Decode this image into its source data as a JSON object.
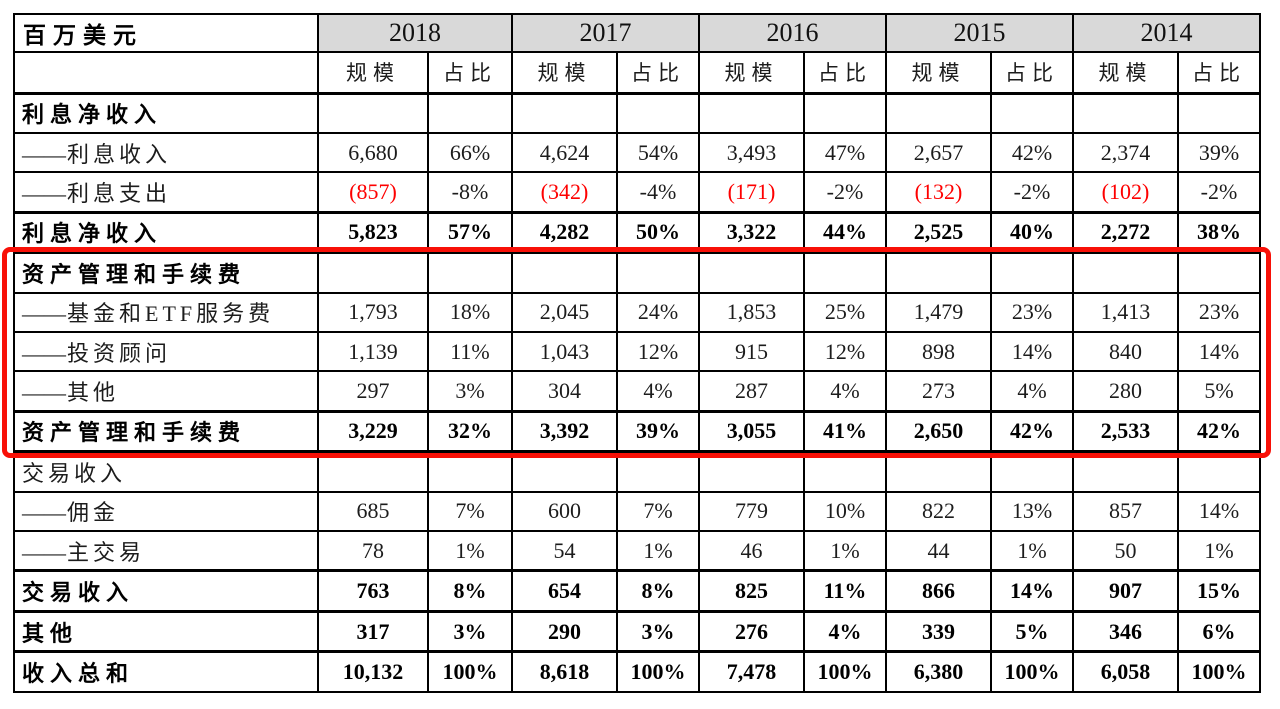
{
  "unit_label": "百万美元",
  "columns": {
    "years": [
      "2018",
      "2017",
      "2016",
      "2015",
      "2014"
    ],
    "sub_headers": [
      "规模",
      "占比"
    ]
  },
  "rows": [
    {
      "prefix": "",
      "label": "利息净收入",
      "type": "section",
      "bold_label": true,
      "values": [
        "",
        "",
        "",
        "",
        "",
        "",
        "",
        "",
        "",
        ""
      ]
    },
    {
      "prefix": "——",
      "label": "利息收入",
      "type": "item",
      "bold_label": false,
      "values": [
        "6,680",
        "66%",
        "4,624",
        "54%",
        "3,493",
        "47%",
        "2,657",
        "42%",
        "2,374",
        "39%"
      ]
    },
    {
      "prefix": "——",
      "label": "利息支出",
      "type": "item",
      "bold_label": false,
      "values": [
        "(857)",
        "-8%",
        "(342)",
        "-4%",
        "(171)",
        "-2%",
        "(132)",
        "-2%",
        "(102)",
        "-2%"
      ]
    },
    {
      "prefix": "",
      "label": "利息净收入",
      "type": "total",
      "bold_label": true,
      "values": [
        "5,823",
        "57%",
        "4,282",
        "50%",
        "3,322",
        "44%",
        "2,525",
        "40%",
        "2,272",
        "38%"
      ]
    },
    {
      "prefix": "",
      "label": "资产管理和手续费",
      "type": "section",
      "bold_label": true,
      "values": [
        "",
        "",
        "",
        "",
        "",
        "",
        "",
        "",
        "",
        ""
      ]
    },
    {
      "prefix": "——",
      "label": "基金和ETF服务费",
      "type": "item",
      "bold_label": false,
      "values": [
        "1,793",
        "18%",
        "2,045",
        "24%",
        "1,853",
        "25%",
        "1,479",
        "23%",
        "1,413",
        "23%"
      ]
    },
    {
      "prefix": "——",
      "label": "投资顾问",
      "type": "item",
      "bold_label": false,
      "values": [
        "1,139",
        "11%",
        "1,043",
        "12%",
        "915",
        "12%",
        "898",
        "14%",
        "840",
        "14%"
      ]
    },
    {
      "prefix": "——",
      "label": "其他",
      "type": "item",
      "bold_label": false,
      "values": [
        "297",
        "3%",
        "304",
        "4%",
        "287",
        "4%",
        "273",
        "4%",
        "280",
        "5%"
      ]
    },
    {
      "prefix": "",
      "label": "资产管理和手续费",
      "type": "total",
      "bold_label": true,
      "values": [
        "3,229",
        "32%",
        "3,392",
        "39%",
        "3,055",
        "41%",
        "2,650",
        "42%",
        "2,533",
        "42%"
      ]
    },
    {
      "prefix": "",
      "label": "交易收入",
      "type": "section",
      "bold_label": false,
      "values": [
        "",
        "",
        "",
        "",
        "",
        "",
        "",
        "",
        "",
        ""
      ]
    },
    {
      "prefix": "——",
      "label": "佣金",
      "type": "item",
      "bold_label": false,
      "values": [
        "685",
        "7%",
        "600",
        "7%",
        "779",
        "10%",
        "822",
        "13%",
        "857",
        "14%"
      ]
    },
    {
      "prefix": "——",
      "label": "主交易",
      "type": "item",
      "bold_label": false,
      "values": [
        "78",
        "1%",
        "54",
        "1%",
        "46",
        "1%",
        "44",
        "1%",
        "50",
        "1%"
      ]
    },
    {
      "prefix": "",
      "label": "交易收入",
      "type": "total",
      "bold_label": true,
      "values": [
        "763",
        "8%",
        "654",
        "8%",
        "825",
        "11%",
        "866",
        "14%",
        "907",
        "15%"
      ]
    },
    {
      "prefix": "",
      "label": "其他",
      "type": "total",
      "bold_label": true,
      "values": [
        "317",
        "3%",
        "290",
        "3%",
        "276",
        "4%",
        "339",
        "5%",
        "346",
        "6%"
      ]
    },
    {
      "prefix": "",
      "label": "收入总和",
      "type": "total",
      "bold_label": true,
      "values": [
        "10,132",
        "100%",
        "8,618",
        "100%",
        "7,478",
        "100%",
        "6,380",
        "100%",
        "6,058",
        "100%"
      ]
    }
  ],
  "annotation": {
    "shape": "rounded-rectangle",
    "color": "#f81007",
    "from_row_index": 4,
    "to_row_index": 8,
    "highlights_section": "资产管理和手续费"
  },
  "colors": {
    "negative_value": "#fe0000",
    "year_header_bg": "#d9d9d9",
    "border": "#000000",
    "text": "#1c1c1c"
  }
}
